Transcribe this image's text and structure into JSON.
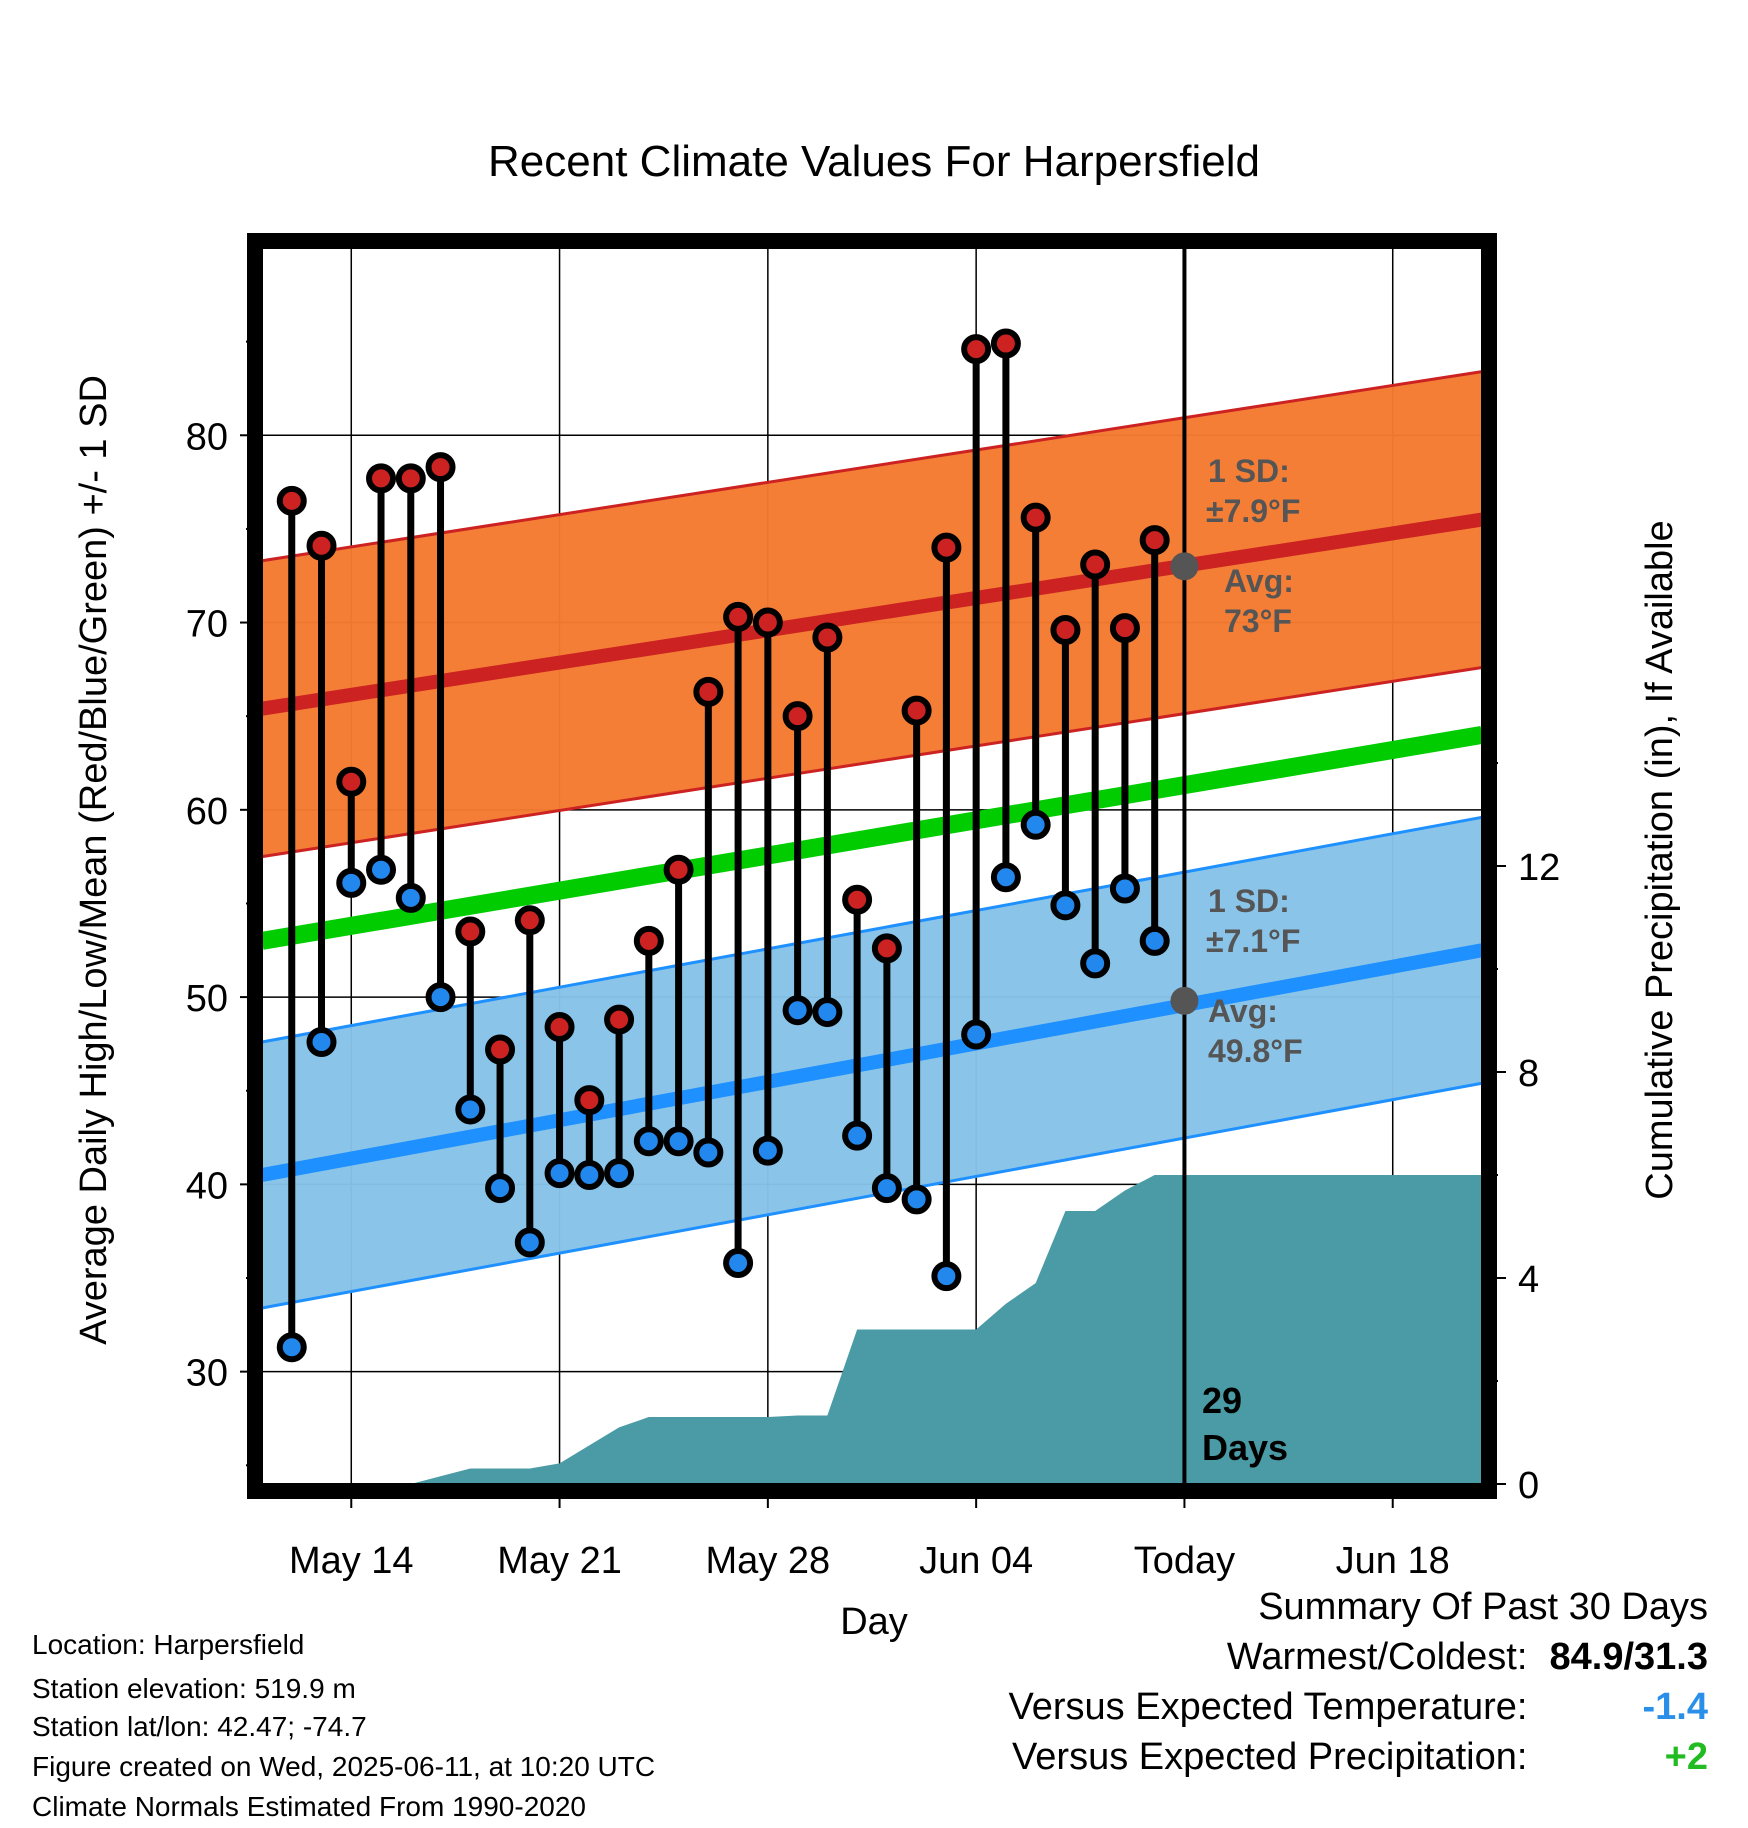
{
  "chart_data": {
    "type": "line",
    "title": "Recent Climate Values For Harpersfield",
    "xlabel": "Day",
    "ylabel": "Average Daily High/Low/Mean (Red/Blue/Green) +/- 1 SD",
    "ylabel_right": "Cumulative Precipitation (in), If Available",
    "ylim": [
      24,
      90
    ],
    "ylim_right": [
      0,
      24
    ],
    "x_tick_labels": [
      "May 14",
      "May 21",
      "May 28",
      "Jun 04",
      "Today",
      "Jun 18"
    ],
    "x_tick_dates": [
      "2025-05-14",
      "2025-05-21",
      "2025-05-28",
      "2025-06-04",
      "2025-06-11",
      "2025-06-18"
    ],
    "y_ticks": [
      30,
      40,
      50,
      60,
      70,
      80
    ],
    "y_ticks_right": [
      0,
      4,
      8,
      12
    ],
    "grid": true,
    "today": "2025-06-11",
    "dates": [
      "2025-05-12",
      "2025-05-13",
      "2025-05-14",
      "2025-05-15",
      "2025-05-16",
      "2025-05-17",
      "2025-05-18",
      "2025-05-19",
      "2025-05-20",
      "2025-05-21",
      "2025-05-22",
      "2025-05-23",
      "2025-05-24",
      "2025-05-25",
      "2025-05-26",
      "2025-05-27",
      "2025-05-28",
      "2025-05-29",
      "2025-05-30",
      "2025-05-31",
      "2025-06-01",
      "2025-06-02",
      "2025-06-03",
      "2025-06-04",
      "2025-06-05",
      "2025-06-06",
      "2025-06-07",
      "2025-06-08",
      "2025-06-09",
      "2025-06-10"
    ],
    "series": [
      {
        "name": "High",
        "color": "#cc2222",
        "values": [
          76.5,
          74.1,
          61.5,
          77.7,
          77.7,
          78.3,
          53.5,
          47.2,
          54.1,
          48.4,
          44.5,
          48.8,
          53.0,
          56.8,
          66.3,
          70.3,
          70.0,
          65.0,
          69.2,
          55.2,
          52.6,
          65.3,
          74.0,
          84.6,
          84.9,
          75.6,
          69.6,
          73.1,
          69.7,
          74.4
        ]
      },
      {
        "name": "Low",
        "color": "#2288ee",
        "values": [
          31.3,
          47.6,
          56.1,
          56.8,
          55.3,
          50.0,
          44.0,
          39.8,
          36.9,
          40.6,
          40.5,
          40.6,
          42.3,
          42.3,
          41.7,
          35.8,
          41.8,
          49.3,
          49.2,
          42.6,
          39.8,
          39.2,
          35.1,
          48.0,
          56.4,
          59.2,
          54.9,
          51.8,
          55.8,
          53.0
        ]
      }
    ],
    "normals": {
      "dates": [
        "2025-05-11",
        "2025-06-21"
      ],
      "high_mean": [
        65.4,
        75.5
      ],
      "high_sd": 7.9,
      "low_mean": [
        40.5,
        52.5
      ],
      "low_sd": 7.1,
      "mean": [
        53.0,
        64.0
      ],
      "colors": {
        "high_band": "#f47a30",
        "high_line": "#cc2222",
        "low_band": "#86c3e8",
        "low_line": "#1e90ff",
        "mean_line": "#00cc00",
        "precip": "#4a9ba5"
      }
    },
    "precipitation": {
      "dates": [
        "2025-05-11",
        "2025-05-16",
        "2025-05-17",
        "2025-05-18",
        "2025-05-19",
        "2025-05-20",
        "2025-05-21",
        "2025-05-22",
        "2025-05-23",
        "2025-05-24",
        "2025-05-25",
        "2025-05-26",
        "2025-05-27",
        "2025-05-28",
        "2025-05-29",
        "2025-05-30",
        "2025-05-31",
        "2025-06-01",
        "2025-06-02",
        "2025-06-03",
        "2025-06-04",
        "2025-06-05",
        "2025-06-06",
        "2025-06-07",
        "2025-06-08",
        "2025-06-09",
        "2025-06-10",
        "2025-06-21"
      ],
      "values": [
        0,
        0,
        0.15,
        0.3,
        0.3,
        0.3,
        0.4,
        0.75,
        1.1,
        1.3,
        1.3,
        1.3,
        1.3,
        1.3,
        1.33,
        1.33,
        3.0,
        3.0,
        3.0,
        3.0,
        3.0,
        3.5,
        3.9,
        5.3,
        5.3,
        5.7,
        6.0,
        6.0
      ]
    },
    "annotations": {
      "high_sd_label": "1 SD:",
      "high_sd_value": "±7.9°F",
      "high_avg_label": "Avg:",
      "high_avg_value": "73°F",
      "high_avg": 73,
      "low_sd_label": "1 SD:",
      "low_sd_value": "±7.1°F",
      "low_avg_label": "Avg:",
      "low_avg_value": "49.8°F",
      "low_avg": 49.8,
      "days_count": "29",
      "days_label": "Days"
    }
  },
  "footer": {
    "location": "Location: Harpersfield",
    "elevation": "Station elevation: 519.9 m",
    "latlon": "Station lat/lon: 42.47; -74.7",
    "created": "Figure created on Wed, 2025-06-11, at 10:20 UTC",
    "normals": "Climate Normals Estimated From 1990-2020"
  },
  "summary": {
    "heading": "Summary Of Past 30 Days",
    "warm_cold_label": "Warmest/Coldest:",
    "warm_cold_value": "84.9/31.3",
    "temp_label": "Versus Expected Temperature:",
    "temp_value": "-1.4",
    "temp_color": "#2a8fe8",
    "precip_label": "Versus Expected Precipitation:",
    "precip_value": "+2",
    "precip_color": "#22bb22"
  }
}
